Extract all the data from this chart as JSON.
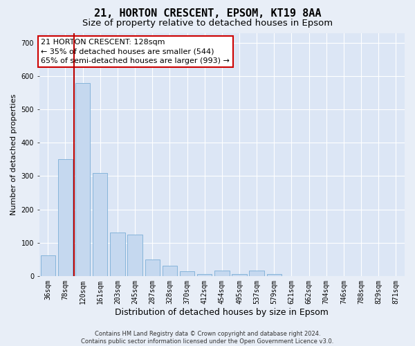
{
  "title": "21, HORTON CRESCENT, EPSOM, KT19 8AA",
  "subtitle": "Size of property relative to detached houses in Epsom",
  "xlabel": "Distribution of detached houses by size in Epsom",
  "ylabel": "Number of detached properties",
  "categories": [
    "36sqm",
    "78sqm",
    "120sqm",
    "161sqm",
    "203sqm",
    "245sqm",
    "287sqm",
    "328sqm",
    "370sqm",
    "412sqm",
    "454sqm",
    "495sqm",
    "537sqm",
    "579sqm",
    "621sqm",
    "662sqm",
    "704sqm",
    "746sqm",
    "788sqm",
    "829sqm",
    "871sqm"
  ],
  "values": [
    62,
    350,
    580,
    310,
    130,
    125,
    50,
    30,
    15,
    5,
    17,
    5,
    17,
    5,
    0,
    0,
    0,
    0,
    0,
    0,
    0
  ],
  "bar_color": "#c5d8ef",
  "bar_edge_color": "#7aaed6",
  "vline_color": "#bb0000",
  "vline_pos": 1.5,
  "annotation_text": "21 HORTON CRESCENT: 128sqm\n← 35% of detached houses are smaller (544)\n65% of semi-detached houses are larger (993) →",
  "annotation_box_facecolor": "#ffffff",
  "annotation_box_edgecolor": "#cc0000",
  "ylim": [
    0,
    730
  ],
  "yticks": [
    0,
    100,
    200,
    300,
    400,
    500,
    600,
    700
  ],
  "bg_color": "#e8eef7",
  "plot_bg_color": "#dce6f5",
  "grid_color": "#ffffff",
  "footer": "Contains HM Land Registry data © Crown copyright and database right 2024.\nContains public sector information licensed under the Open Government Licence v3.0.",
  "title_fontsize": 11,
  "subtitle_fontsize": 9.5,
  "tick_fontsize": 7,
  "ylabel_fontsize": 8,
  "xlabel_fontsize": 9,
  "annotation_fontsize": 8,
  "footer_fontsize": 6
}
